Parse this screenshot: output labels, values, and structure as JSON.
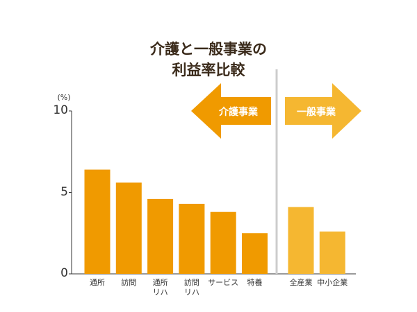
{
  "chart_data": {
    "type": "bar",
    "title": "介護と一般事業の\n利益率比較",
    "y_unit": "(%)",
    "ylim": [
      0,
      10
    ],
    "yticks": [
      0,
      5,
      10
    ],
    "groups": [
      {
        "name": "介護事業",
        "color": "#f09a00",
        "categories": [
          "通所",
          "訪問",
          "通所\nリハ",
          "訪問\nリハ",
          "サービス",
          "特養"
        ],
        "values": [
          6.4,
          5.6,
          4.6,
          4.3,
          3.8,
          2.5
        ]
      },
      {
        "name": "一般事業",
        "color": "#f5b731",
        "categories": [
          "全産業",
          "中小企業"
        ],
        "values": [
          4.1,
          2.6
        ]
      }
    ]
  }
}
